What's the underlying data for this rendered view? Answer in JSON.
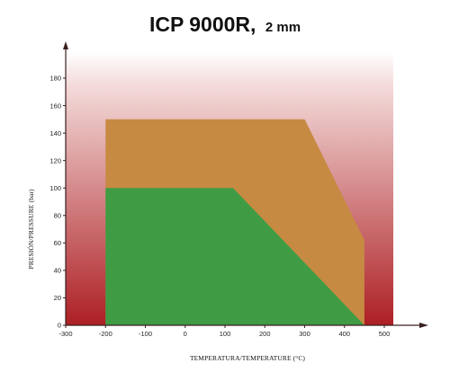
{
  "title": "ICP 9000R,",
  "subtitle": "2 mm",
  "chart_data": {
    "type": "area",
    "title": "ICP 9000R,",
    "subtitle": "2 mm",
    "xlabel": "TEMPERATURA/TEMPERATURE (°C)",
    "ylabel": "PRESIÓN/PRESSURE (bar)",
    "xlim": [
      -300,
      500
    ],
    "ylim": [
      0,
      180
    ],
    "xticks": [
      -300,
      -200,
      -100,
      0,
      100,
      200,
      300,
      400,
      500
    ],
    "yticks": [
      0,
      20,
      40,
      60,
      80,
      100,
      120,
      140,
      160,
      180
    ],
    "background_gradient": [
      "#ffffff",
      "#ad1f24"
    ],
    "grid": false,
    "series": [
      {
        "color": "#c68a42",
        "points": [
          [
            -200,
            0
          ],
          [
            -200,
            150
          ],
          [
            300,
            150
          ],
          [
            450,
            62
          ],
          [
            450,
            0
          ]
        ]
      },
      {
        "color": "#3f9c44",
        "points": [
          [
            -200,
            0
          ],
          [
            -200,
            100
          ],
          [
            120,
            100
          ],
          [
            450,
            0
          ]
        ]
      }
    ]
  }
}
